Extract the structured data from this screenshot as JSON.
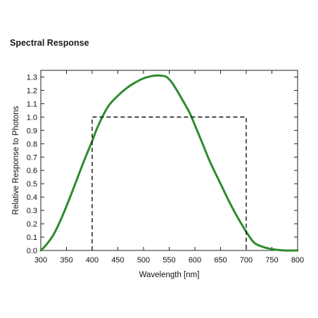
{
  "page": {
    "title": "Spectral Response"
  },
  "colors": {
    "curve": "#2e8b2e",
    "reference": "#111111",
    "axes": "#222222"
  },
  "chart_data": {
    "type": "line",
    "title": "Spectral Response",
    "xlabel": "Wavelength [nm]",
    "ylabel": "Relative Response to Photons",
    "xlim": [
      300,
      800
    ],
    "ylim": [
      0,
      1.35
    ],
    "x_ticks": [
      300,
      350,
      400,
      450,
      500,
      550,
      600,
      650,
      700,
      750,
      800
    ],
    "y_ticks": [
      0.0,
      0.1,
      0.2,
      0.3,
      0.4,
      0.5,
      0.6,
      0.7,
      0.8,
      0.9,
      1.0,
      1.1,
      1.2,
      1.3
    ],
    "grid": false,
    "legend": "none",
    "series": [
      {
        "style": "solid",
        "x": [
          300,
          310,
          325,
          340,
          355,
          370,
          385,
          400,
          410,
          425,
          435,
          450,
          465,
          480,
          500,
          520,
          535,
          545,
          555,
          565,
          580,
          590,
          600,
          615,
          630,
          650,
          665,
          680,
          700,
          715,
          730,
          750,
          775,
          800
        ],
        "y": [
          0.0,
          0.04,
          0.12,
          0.24,
          0.38,
          0.53,
          0.68,
          0.82,
          0.92,
          1.04,
          1.1,
          1.16,
          1.21,
          1.25,
          1.29,
          1.31,
          1.31,
          1.3,
          1.26,
          1.2,
          1.1,
          1.03,
          0.94,
          0.8,
          0.66,
          0.5,
          0.38,
          0.27,
          0.14,
          0.06,
          0.03,
          0.01,
          0.0,
          0.0
        ]
      },
      {
        "style": "dashed",
        "x": [
          400,
          400,
          700,
          700
        ],
        "y": [
          0.0,
          1.0,
          1.0,
          0.0
        ]
      }
    ]
  }
}
